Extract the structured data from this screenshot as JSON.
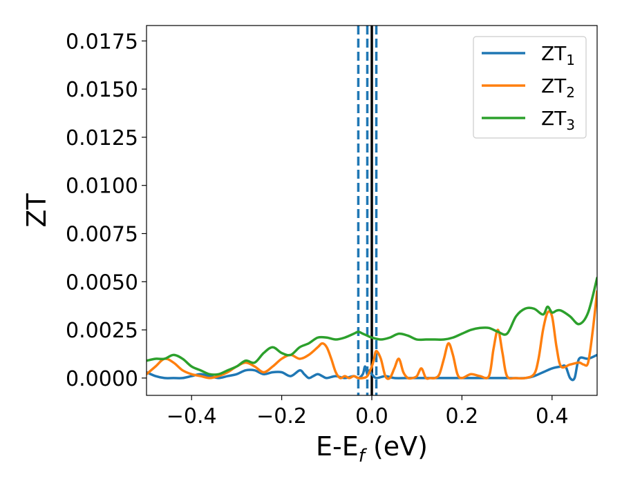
{
  "chart_data": {
    "type": "line",
    "xlabel": {
      "main": "E-E",
      "sub": "f",
      "suffix": " (eV)"
    },
    "ylabel": "ZT",
    "xlim": [
      -0.5,
      0.5
    ],
    "ylim": [
      -0.0009,
      0.0183
    ],
    "xticks": [
      -0.4,
      -0.2,
      0.0,
      0.2,
      0.4
    ],
    "xtick_labels": [
      "−0.4",
      "−0.2",
      "0.0",
      "0.2",
      "0.4"
    ],
    "yticks": [
      0.0,
      0.0025,
      0.005,
      0.0075,
      0.01,
      0.0125,
      0.015,
      0.0175
    ],
    "ytick_labels": [
      "0.0000",
      "0.0025",
      "0.0050",
      "0.0075",
      "0.0100",
      "0.0125",
      "0.0150",
      "0.0175"
    ],
    "grid": false,
    "legend_position": "top-right",
    "vlines": [
      {
        "x": -0.03,
        "style": "dashed",
        "color": "#1f77b4"
      },
      {
        "x": -0.01,
        "style": "dashed",
        "color": "#1f77b4"
      },
      {
        "x": 0.01,
        "style": "dashed",
        "color": "#1f77b4"
      },
      {
        "x": 0.0,
        "style": "solid",
        "color": "#000000"
      }
    ],
    "series": [
      {
        "name_main": "ZT",
        "name_sub": "1",
        "color": "#1f77b4",
        "x": [
          -0.5,
          -0.48,
          -0.46,
          -0.44,
          -0.42,
          -0.4,
          -0.38,
          -0.36,
          -0.34,
          -0.32,
          -0.3,
          -0.28,
          -0.26,
          -0.24,
          -0.22,
          -0.2,
          -0.18,
          -0.16,
          -0.15,
          -0.14,
          -0.13,
          -0.12,
          -0.11,
          -0.1,
          -0.08,
          -0.06,
          -0.04,
          -0.03,
          -0.02,
          -0.015,
          -0.01,
          -0.005,
          0.0,
          0.01,
          0.03,
          0.05,
          0.08,
          0.12,
          0.16,
          0.2,
          0.25,
          0.3,
          0.34,
          0.36,
          0.38,
          0.4,
          0.42,
          0.43,
          0.44,
          0.45,
          0.46,
          0.48,
          0.5
        ],
        "y": [
          0.0003,
          0.0001,
          0.0,
          0.0,
          0.0,
          0.0001,
          0.0002,
          0.0001,
          0.0,
          0.0001,
          0.0002,
          0.0004,
          0.0004,
          0.0002,
          0.0003,
          0.0003,
          0.0001,
          0.0004,
          0.0002,
          0.0,
          0.0001,
          0.0002,
          0.0001,
          0.0,
          0.0001,
          0.0,
          0.0001,
          0.0,
          0.0002,
          0.0006,
          0.0002,
          0.0004,
          0.0002,
          0.0,
          0.0001,
          0.0,
          0.0,
          0.0,
          0.0,
          0.0,
          0.0,
          0.0,
          0.0,
          0.0001,
          0.0003,
          0.0005,
          0.0006,
          0.0006,
          0.0,
          0.0,
          0.001,
          0.001,
          0.0012
        ]
      },
      {
        "name_main": "ZT",
        "name_sub": "2",
        "color": "#ff7f0e",
        "x": [
          -0.5,
          -0.48,
          -0.46,
          -0.44,
          -0.42,
          -0.4,
          -0.38,
          -0.36,
          -0.34,
          -0.32,
          -0.3,
          -0.28,
          -0.26,
          -0.24,
          -0.22,
          -0.2,
          -0.18,
          -0.16,
          -0.14,
          -0.12,
          -0.11,
          -0.1,
          -0.09,
          -0.08,
          -0.07,
          -0.06,
          -0.05,
          -0.04,
          -0.03,
          -0.02,
          -0.01,
          0.0,
          0.005,
          0.01,
          0.02,
          0.03,
          0.04,
          0.05,
          0.06,
          0.07,
          0.08,
          0.09,
          0.1,
          0.11,
          0.12,
          0.13,
          0.14,
          0.15,
          0.16,
          0.17,
          0.18,
          0.19,
          0.2,
          0.22,
          0.24,
          0.26,
          0.27,
          0.28,
          0.29,
          0.3,
          0.32,
          0.34,
          0.36,
          0.37,
          0.38,
          0.39,
          0.4,
          0.41,
          0.42,
          0.44,
          0.46,
          0.47,
          0.48,
          0.49,
          0.5
        ],
        "y": [
          0.0002,
          0.0006,
          0.001,
          0.0008,
          0.0004,
          0.0002,
          0.0001,
          0.0,
          0.0001,
          0.0003,
          0.0006,
          0.0008,
          0.0006,
          0.0003,
          0.0006,
          0.001,
          0.0012,
          0.001,
          0.0012,
          0.0016,
          0.0018,
          0.0016,
          0.001,
          0.0003,
          0.0,
          0.0001,
          0.0,
          0.0001,
          0.0,
          0.0,
          0.0001,
          0.0006,
          0.001,
          0.0014,
          0.001,
          0.0001,
          0.0,
          0.0005,
          0.001,
          0.0003,
          0.0,
          0.0,
          0.0001,
          0.0005,
          0.0,
          0.0,
          0.0,
          0.0002,
          0.001,
          0.0018,
          0.0012,
          0.0002,
          0.0,
          0.0002,
          0.0001,
          0.0001,
          0.0015,
          0.0025,
          0.0013,
          0.0001,
          0.0,
          0.0,
          0.0002,
          0.001,
          0.0025,
          0.0034,
          0.0032,
          0.0016,
          0.0006,
          0.0007,
          0.0008,
          0.0007,
          0.0008,
          0.0024,
          0.0045
        ]
      },
      {
        "name_main": "ZT",
        "name_sub": "3",
        "color": "#2ca02c",
        "x": [
          -0.5,
          -0.48,
          -0.46,
          -0.44,
          -0.42,
          -0.4,
          -0.38,
          -0.36,
          -0.34,
          -0.32,
          -0.3,
          -0.28,
          -0.26,
          -0.24,
          -0.22,
          -0.2,
          -0.18,
          -0.16,
          -0.14,
          -0.12,
          -0.1,
          -0.08,
          -0.06,
          -0.04,
          -0.03,
          -0.02,
          -0.01,
          0.0,
          0.02,
          0.04,
          0.06,
          0.08,
          0.1,
          0.12,
          0.14,
          0.16,
          0.18,
          0.2,
          0.22,
          0.24,
          0.26,
          0.28,
          0.3,
          0.32,
          0.34,
          0.36,
          0.38,
          0.39,
          0.4,
          0.41,
          0.42,
          0.44,
          0.46,
          0.48,
          0.5
        ],
        "y": [
          0.0009,
          0.001,
          0.001,
          0.0012,
          0.001,
          0.0006,
          0.0004,
          0.0002,
          0.0002,
          0.0004,
          0.0006,
          0.0009,
          0.0008,
          0.0013,
          0.0016,
          0.0013,
          0.0012,
          0.0016,
          0.0018,
          0.0021,
          0.0021,
          0.002,
          0.0021,
          0.0023,
          0.0024,
          0.0023,
          0.0022,
          0.0021,
          0.002,
          0.0021,
          0.0023,
          0.0022,
          0.002,
          0.002,
          0.002,
          0.002,
          0.0021,
          0.0023,
          0.0025,
          0.0026,
          0.0026,
          0.0024,
          0.0023,
          0.0032,
          0.0036,
          0.0036,
          0.0033,
          0.0037,
          0.0034,
          0.0035,
          0.0035,
          0.0032,
          0.0028,
          0.0034,
          0.0052
        ]
      }
    ]
  }
}
